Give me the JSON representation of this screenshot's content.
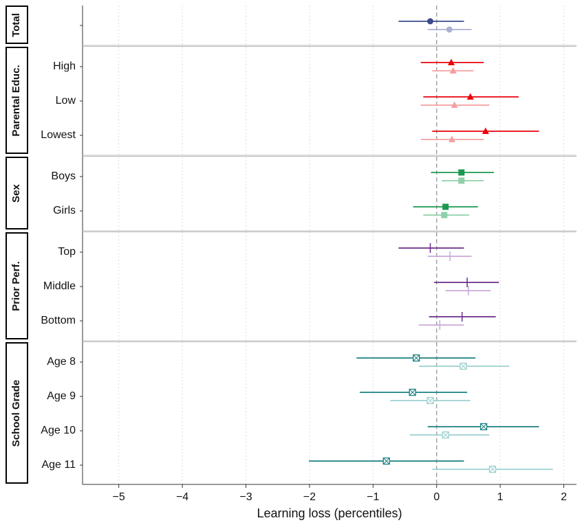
{
  "chart_data": {
    "type": "forest",
    "xlabel": "Learning loss (percentiles)",
    "xlim": [
      -5.57,
      2.2
    ],
    "xticks": [
      {
        "value": -5,
        "label": "−5"
      },
      {
        "value": -4,
        "label": "−4"
      },
      {
        "value": -3,
        "label": "−3"
      },
      {
        "value": -2,
        "label": "−2"
      },
      {
        "value": -1,
        "label": "−1"
      },
      0,
      1,
      2
    ],
    "reference_line": 0,
    "grid": true,
    "panels": [
      {
        "title": "Total",
        "marker": "circle",
        "categories": [
          null
        ],
        "series": [
          {
            "color": "#3d4a8f",
            "values": [
              -0.1
            ],
            "ci_low": [
              -0.6
            ],
            "ci_high": [
              0.43
            ]
          },
          {
            "color": "#aab0d4",
            "values": [
              0.2
            ],
            "ci_low": [
              -0.14
            ],
            "ci_high": [
              0.55
            ]
          }
        ]
      },
      {
        "title": "Parental Educ.",
        "marker": "triangle",
        "categories": [
          "High",
          "Low",
          "Lowest"
        ],
        "series": [
          {
            "color": "#e8000b",
            "values": [
              0.23,
              0.53,
              0.77
            ],
            "ci_low": [
              -0.25,
              -0.21,
              -0.07
            ],
            "ci_high": [
              0.74,
              1.29,
              1.61
            ]
          },
          {
            "color": "#f4a0a0",
            "values": [
              0.26,
              0.28,
              0.24
            ],
            "ci_low": [
              -0.07,
              -0.25,
              -0.25
            ],
            "ci_high": [
              0.58,
              0.83,
              0.74
            ]
          }
        ]
      },
      {
        "title": "Sex",
        "marker": "square",
        "categories": [
          "Boys",
          "Girls"
        ],
        "series": [
          {
            "color": "#1a9850",
            "values": [
              0.39,
              0.14
            ],
            "ci_low": [
              -0.09,
              -0.37
            ],
            "ci_high": [
              0.9,
              0.65
            ]
          },
          {
            "color": "#8fd0a8",
            "values": [
              0.39,
              0.12
            ],
            "ci_low": [
              0.08,
              -0.21
            ],
            "ci_high": [
              0.74,
              0.51
            ]
          }
        ]
      },
      {
        "title": "Prior Perf.",
        "marker": "bar",
        "categories": [
          "Top",
          "Middle",
          "Bottom"
        ],
        "series": [
          {
            "color": "#6a2c8a",
            "values": [
              -0.1,
              0.48,
              0.4
            ],
            "ci_low": [
              -0.6,
              -0.04,
              -0.12
            ],
            "ci_high": [
              0.43,
              0.98,
              0.93
            ]
          },
          {
            "color": "#c8a8d8",
            "values": [
              0.21,
              0.5,
              0.05
            ],
            "ci_low": [
              -0.14,
              0.14,
              -0.28
            ],
            "ci_high": [
              0.55,
              0.85,
              0.43
            ]
          }
        ]
      },
      {
        "title": "School Grade",
        "marker": "crossed-square",
        "categories": [
          "Age 8",
          "Age 9",
          "Age 10",
          "Age 11"
        ],
        "series": [
          {
            "color": "#1a8080",
            "values": [
              -0.32,
              -0.38,
              0.74,
              -0.79
            ],
            "ci_low": [
              -1.26,
              -1.21,
              -0.14,
              -2.01
            ],
            "ci_high": [
              0.61,
              0.48,
              1.61,
              0.43
            ]
          },
          {
            "color": "#9cd0d0",
            "values": [
              0.42,
              -0.1,
              0.14,
              0.88
            ],
            "ci_low": [
              -0.28,
              -0.73,
              -0.42,
              -0.07
            ],
            "ci_high": [
              1.14,
              0.53,
              0.83,
              1.83
            ]
          }
        ]
      }
    ]
  }
}
